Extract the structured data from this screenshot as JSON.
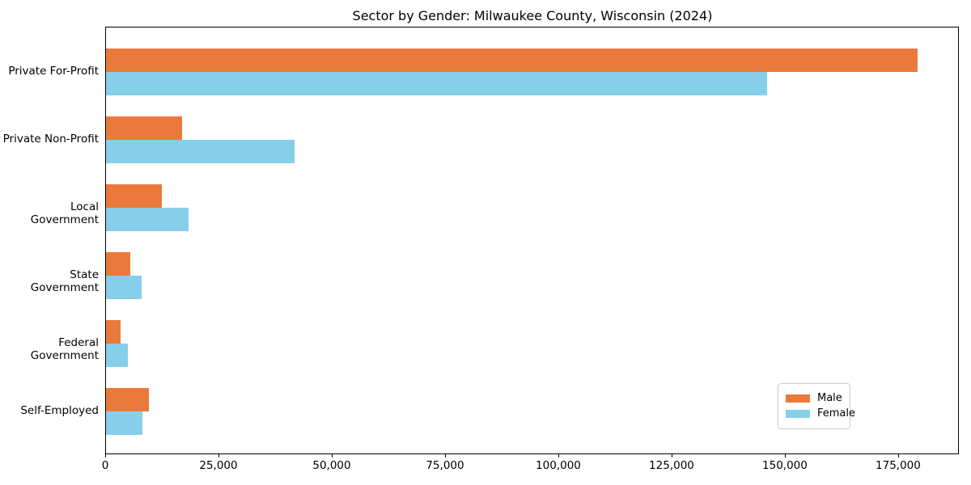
{
  "title": "Sector by Gender: Milwaukee County, Wisconsin (2024)",
  "chart_data": {
    "type": "bar",
    "orientation": "horizontal",
    "title": "Sector by Gender: Milwaukee County, Wisconsin (2024)",
    "categories": [
      "Private For-Profit",
      "Private Non-Profit",
      "Local Government",
      "State Government",
      "Federal Government",
      "Self-Employed"
    ],
    "series": [
      {
        "name": "Male",
        "color": "#E97A3C",
        "values": [
          179400,
          16800,
          12400,
          5400,
          3300,
          9400
        ]
      },
      {
        "name": "Female",
        "color": "#87CEEB",
        "values": [
          146100,
          41600,
          18200,
          7900,
          4900,
          8000
        ]
      }
    ],
    "x_ticks": [
      0,
      25000,
      50000,
      75000,
      100000,
      125000,
      150000,
      175000
    ],
    "x_tick_labels": [
      "0",
      "25,000",
      "50,000",
      "75,000",
      "100,000",
      "125,000",
      "150,000",
      "175,000"
    ],
    "xlim": [
      0,
      188400
    ],
    "xlabel": "",
    "ylabel": "",
    "grid": false,
    "legend": {
      "position": "lower right"
    },
    "colors": {
      "spine": "#000000",
      "background": "#ffffff",
      "legend_border": "#cccccc"
    }
  }
}
